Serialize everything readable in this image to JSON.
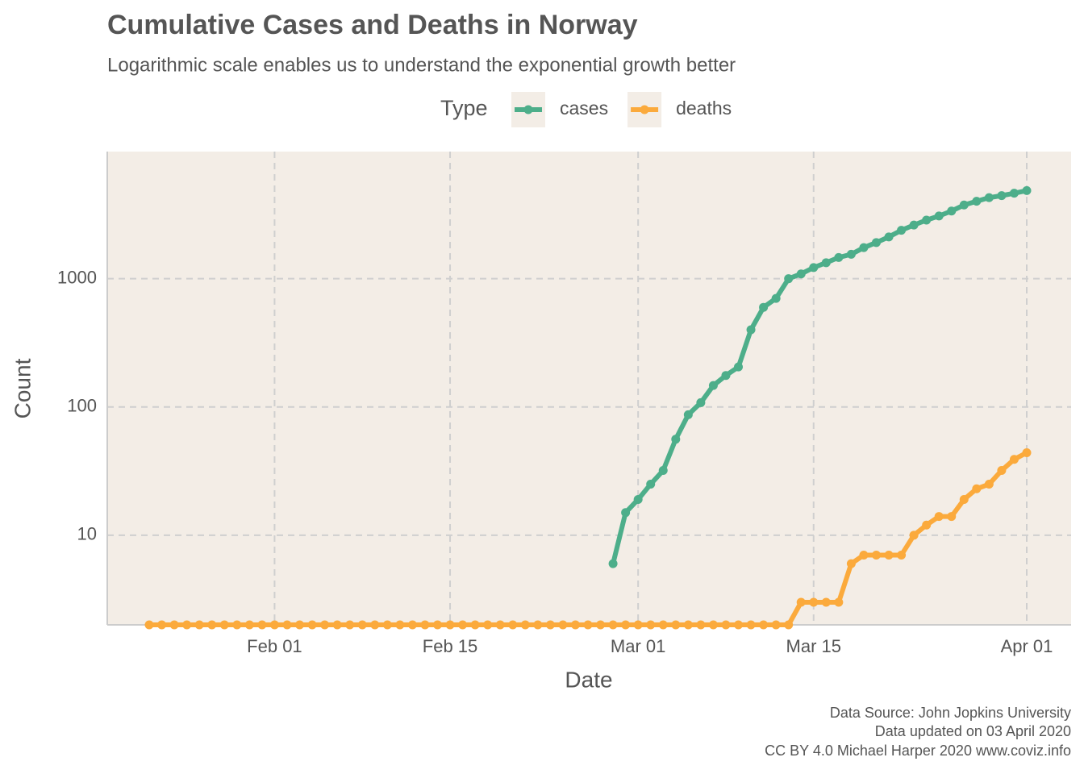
{
  "chart_data": {
    "type": "line",
    "title": "Cumulative Cases and Deaths in Norway",
    "subtitle": "Logarithmic scale enables us to understand the exponential growth better",
    "x_label": "Date",
    "y_label": "Count",
    "legend_title": "Type",
    "legend_position": "top",
    "log_y": true,
    "grid": true,
    "caption": [
      "Data Source: John Jopkins University",
      "Data updated on 03 April 2020",
      "CC BY 4.0 Michael Harper 2020 www.coviz.info"
    ],
    "categories": [
      "Jan 22",
      "Jan 23",
      "Jan 24",
      "Jan 25",
      "Jan 26",
      "Jan 27",
      "Jan 28",
      "Jan 29",
      "Jan 30",
      "Jan 31",
      "Feb 01",
      "Feb 02",
      "Feb 03",
      "Feb 04",
      "Feb 05",
      "Feb 06",
      "Feb 07",
      "Feb 08",
      "Feb 09",
      "Feb 10",
      "Feb 11",
      "Feb 12",
      "Feb 13",
      "Feb 14",
      "Feb 15",
      "Feb 16",
      "Feb 17",
      "Feb 18",
      "Feb 19",
      "Feb 20",
      "Feb 21",
      "Feb 22",
      "Feb 23",
      "Feb 24",
      "Feb 25",
      "Feb 26",
      "Feb 27",
      "Feb 28",
      "Feb 29",
      "Mar 01",
      "Mar 02",
      "Mar 03",
      "Mar 04",
      "Mar 05",
      "Mar 06",
      "Mar 07",
      "Mar 08",
      "Mar 09",
      "Mar 10",
      "Mar 11",
      "Mar 12",
      "Mar 13",
      "Mar 14",
      "Mar 15",
      "Mar 16",
      "Mar 17",
      "Mar 18",
      "Mar 19",
      "Mar 20",
      "Mar 21",
      "Mar 22",
      "Mar 23",
      "Mar 24",
      "Mar 25",
      "Mar 26",
      "Mar 27",
      "Mar 28",
      "Mar 29",
      "Mar 30",
      "Mar 31",
      "Apr 01"
    ],
    "xticks": [
      "Feb 01",
      "Feb 15",
      "Mar 01",
      "Mar 15",
      "Apr 01"
    ],
    "ylim": [
      2,
      9800
    ],
    "yticks": [
      10,
      100,
      1000
    ],
    "series": [
      {
        "name": "cases",
        "color": "#4dae8a",
        "values": [
          null,
          null,
          null,
          null,
          null,
          null,
          null,
          null,
          null,
          null,
          null,
          null,
          null,
          null,
          null,
          null,
          null,
          null,
          null,
          null,
          null,
          null,
          null,
          null,
          null,
          null,
          null,
          null,
          null,
          null,
          null,
          null,
          null,
          null,
          null,
          null,
          null,
          6,
          15,
          19,
          25,
          32,
          56,
          87,
          108,
          147,
          176,
          205,
          400,
          598,
          702,
          1000,
          1090,
          1221,
          1333,
          1463,
          1550,
          1746,
          1914,
          2118,
          2385,
          2621,
          2863,
          3084,
          3369,
          3755,
          4015,
          4284,
          4445,
          4641,
          4863
        ]
      },
      {
        "name": "deaths",
        "color": "#fbaa3c",
        "values": [
          0,
          0,
          0,
          0,
          0,
          0,
          0,
          0,
          0,
          0,
          0,
          0,
          0,
          0,
          0,
          0,
          0,
          0,
          0,
          0,
          0,
          0,
          0,
          0,
          0,
          0,
          0,
          0,
          0,
          0,
          0,
          0,
          0,
          0,
          0,
          0,
          0,
          0,
          0,
          0,
          0,
          0,
          0,
          0,
          0,
          0,
          0,
          0,
          0,
          0,
          0,
          0,
          3,
          3,
          3,
          3,
          6,
          7,
          7,
          7,
          7,
          10,
          12,
          14,
          14,
          19,
          23,
          25,
          32,
          39,
          44
        ]
      }
    ]
  }
}
